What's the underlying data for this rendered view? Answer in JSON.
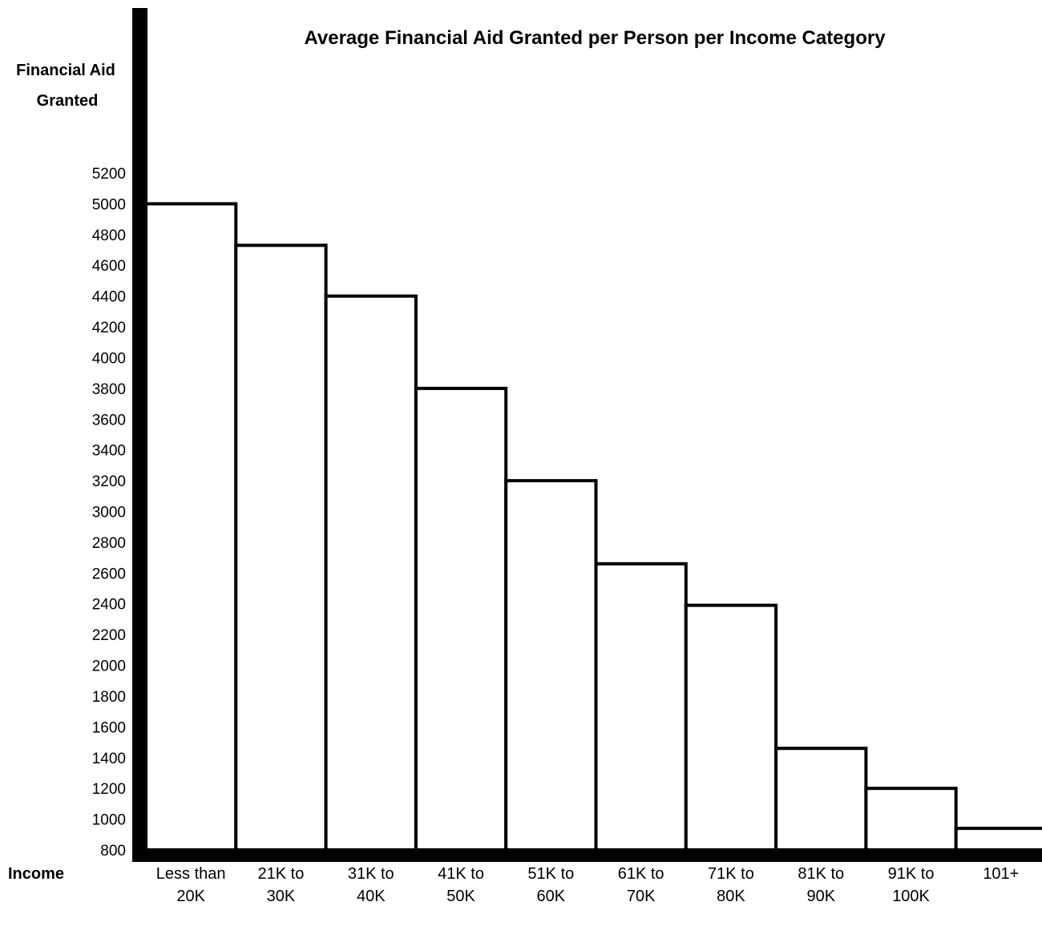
{
  "chart_data": {
    "type": "bar",
    "title": "Average Financial Aid Granted per Person per Income Category",
    "ylabel": [
      "Financial Aid",
      "Granted"
    ],
    "xlabel": "Income",
    "ylim": [
      800,
      5200
    ],
    "yticks": [
      "5200",
      "5000",
      "4800",
      "4600",
      "4400",
      "4200",
      "4000",
      "3800",
      "3600",
      "3400",
      "3200",
      "3000",
      "2800",
      "2600",
      "2400",
      "2200",
      "2000",
      "1800",
      "1600",
      "1400",
      "1200",
      "1000",
      "800"
    ],
    "categories": [
      [
        "Less than",
        "20K"
      ],
      [
        "21K to",
        "30K"
      ],
      [
        "31K to",
        "40K"
      ],
      [
        "41K to",
        "50K"
      ],
      [
        "51K to",
        "60K"
      ],
      [
        "61K to",
        "70K"
      ],
      [
        "71K to",
        "80K"
      ],
      [
        "81K to",
        "90K"
      ],
      [
        "91K to",
        "100K"
      ],
      [
        "101+"
      ]
    ],
    "values": [
      5000,
      4730,
      4400,
      3800,
      3200,
      2660,
      2390,
      1460,
      1200,
      940
    ],
    "grid": false,
    "legend": "none"
  }
}
